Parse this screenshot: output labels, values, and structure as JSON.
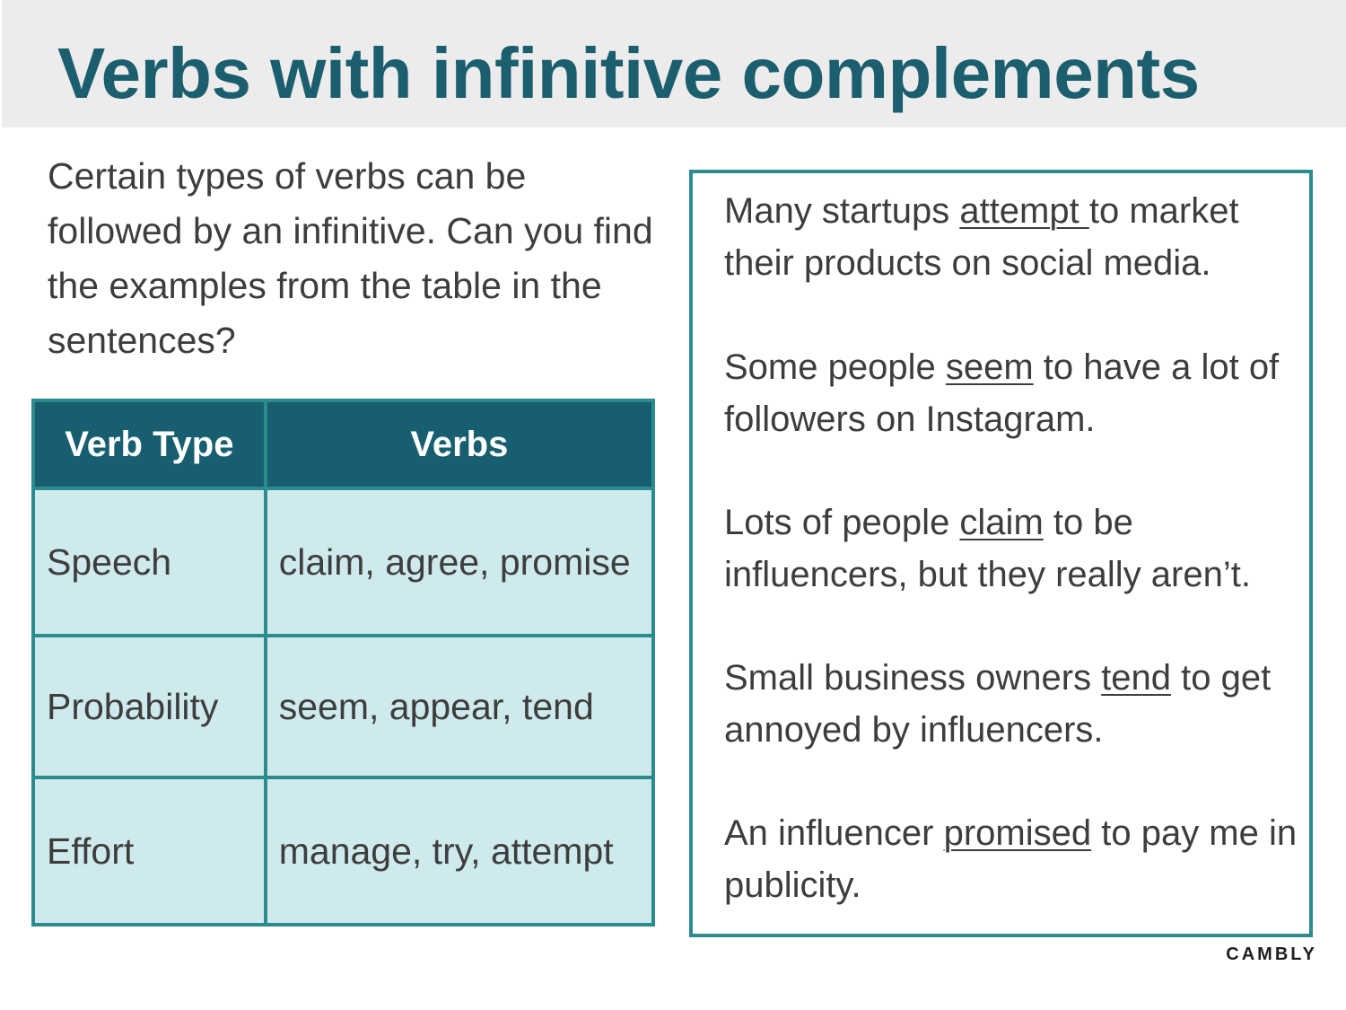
{
  "title": "Verbs with infinitive complements",
  "intro": "Certain types of verbs can be followed by an infinitive. Can you find the examples from the table in the sentences?",
  "table": {
    "headers": [
      "Verb Type",
      "Verbs"
    ],
    "rows": [
      {
        "type": "Speech",
        "verbs": "claim, agree, promise"
      },
      {
        "type": "Probability",
        "verbs": "seem, appear, tend"
      },
      {
        "type": "Effort",
        "verbs": "manage, try, attempt"
      }
    ]
  },
  "sentences": [
    {
      "before": "Many startups ",
      "verb": "attempt ",
      "after": "to market their products on social media."
    },
    {
      "before": "Some people ",
      "verb": "seem",
      "after": " to have a lot of followers on Instagram."
    },
    {
      "before": "Lots of people ",
      "verb": "claim",
      "after": " to be influencers, but they really aren’t."
    },
    {
      "before": "Small business owners ",
      "verb": "tend",
      "after": " to get annoyed by influencers."
    },
    {
      "before": "An influencer ",
      "verb": "promised",
      "after": " to pay me in publicity."
    }
  ],
  "brand": "CAMBLY",
  "colors": {
    "title": "#1b5e6e",
    "header_band": "#ececec",
    "table_header": "#175f70",
    "table_cell": "#ceeaec",
    "border": "#2b8b8e"
  }
}
